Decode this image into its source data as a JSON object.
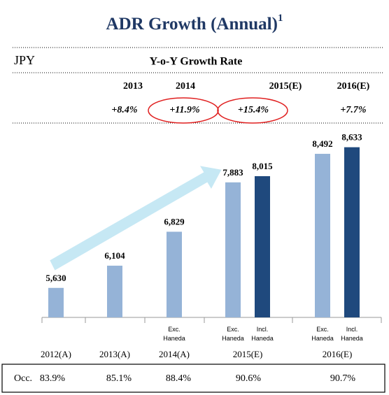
{
  "chart_data": {
    "type": "bar",
    "title": "ADR Growth (Annual)",
    "title_superscript": "1",
    "unit": "JPY",
    "growth_header": "Y-o-Y Growth Rate",
    "growth_years": [
      "2013",
      "2014",
      "2015(E)",
      "2016(E)"
    ],
    "growth_rates": [
      "+8.4%",
      "+11.9%",
      "+15.4%",
      "+7.7%"
    ],
    "categories": [
      "2012(A)",
      "2013(A)",
      "2014(A)",
      "2015(E)",
      "2016(E)"
    ],
    "ylim": [
      5000,
      9000
    ],
    "series": [
      {
        "color": "#95b3d7",
        "values": [
          5630,
          6104,
          6829,
          7883,
          8492
        ],
        "value_labels": [
          "5,630",
          "6,104",
          "6,829",
          "7,883",
          "8,492"
        ],
        "sub_labels": [
          null,
          null,
          "Exc. Haneda",
          "Exc. Haneda",
          "Exc. Haneda"
        ]
      },
      {
        "color": "#1f497d",
        "values": [
          null,
          null,
          null,
          8015,
          8633
        ],
        "value_labels": [
          null,
          null,
          null,
          "8,015",
          "8,633"
        ],
        "sub_labels": [
          null,
          null,
          null,
          "Incl. Haneda",
          "Incl. Haneda"
        ]
      }
    ],
    "occupancy_label": "Occ.",
    "occupancy": [
      "83.9%",
      "85.1%",
      "88.4%",
      "90.6%",
      "90.7%"
    ]
  }
}
